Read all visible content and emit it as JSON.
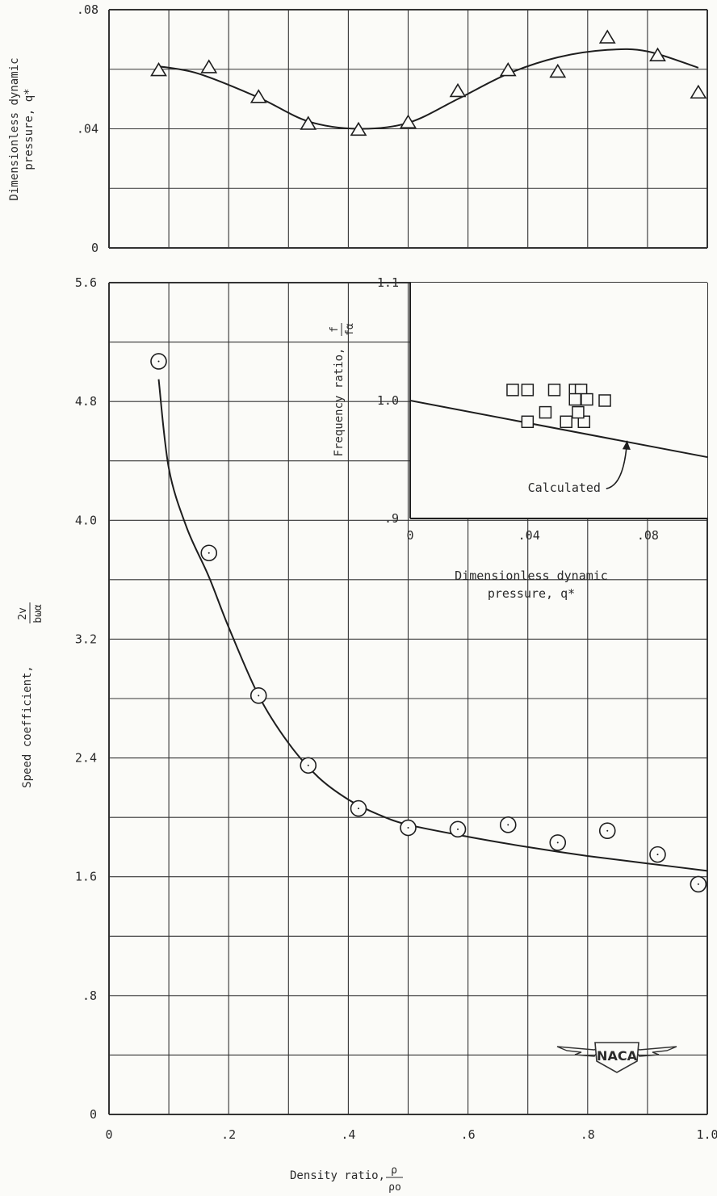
{
  "chart_data": [
    {
      "id": "top",
      "type": "scatter",
      "xlim": [
        0,
        1.0
      ],
      "ylim": [
        0,
        0.08
      ],
      "x_ticks": [],
      "y_ticks": [
        {
          "v": 0.08,
          "label": ".08"
        },
        {
          "v": 0.04,
          "label": ".04"
        },
        {
          "v": 0,
          "label": "0"
        }
      ],
      "ylabel_lines": [
        "Dimensionless dynamic",
        "pressure, q*"
      ],
      "grid": true,
      "marker": "triangle",
      "points": [
        [
          0.083,
          0.0595
        ],
        [
          0.167,
          0.0605
        ],
        [
          0.25,
          0.0505
        ],
        [
          0.333,
          0.0415
        ],
        [
          0.417,
          0.0395
        ],
        [
          0.5,
          0.042
        ],
        [
          0.583,
          0.0525
        ],
        [
          0.667,
          0.0595
        ],
        [
          0.75,
          0.059
        ],
        [
          0.833,
          0.0705
        ],
        [
          0.917,
          0.0645
        ],
        [
          0.985,
          0.052
        ]
      ],
      "curve": [
        [
          0.083,
          0.061
        ],
        [
          0.15,
          0.0585
        ],
        [
          0.25,
          0.0505
        ],
        [
          0.333,
          0.0425
        ],
        [
          0.417,
          0.04
        ],
        [
          0.5,
          0.042
        ],
        [
          0.583,
          0.05
        ],
        [
          0.667,
          0.0585
        ],
        [
          0.75,
          0.064
        ],
        [
          0.833,
          0.0665
        ],
        [
          0.9,
          0.066
        ],
        [
          0.985,
          0.0605
        ]
      ]
    },
    {
      "id": "main",
      "type": "scatter",
      "xlim": [
        0,
        1.0
      ],
      "ylim": [
        0,
        5.6
      ],
      "x_ticks": [
        {
          "v": 0,
          "label": "0"
        },
        {
          "v": 0.2,
          "label": ".2"
        },
        {
          "v": 0.4,
          "label": ".4"
        },
        {
          "v": 0.6,
          "label": ".6"
        },
        {
          "v": 0.8,
          "label": ".8"
        },
        {
          "v": 1.0,
          "label": "1.0"
        }
      ],
      "y_ticks": [
        {
          "v": 5.6,
          "label": "5.6"
        },
        {
          "v": 4.8,
          "label": "4.8"
        },
        {
          "v": 4.0,
          "label": "4.0"
        },
        {
          "v": 3.2,
          "label": "3.2"
        },
        {
          "v": 2.4,
          "label": "2.4"
        },
        {
          "v": 1.6,
          "label": "1.6"
        },
        {
          "v": 0.8,
          "label": ".8"
        },
        {
          "v": 0,
          "label": "0"
        }
      ],
      "xlabel": "Density ratio, ",
      "xlabel_frac": {
        "num": "ρ",
        "den": "ρo"
      },
      "ylabel": "Speed coefficient, ",
      "ylabel_frac": {
        "num": "2v",
        "den": "bωα"
      },
      "grid": true,
      "marker": "circle",
      "points": [
        [
          0.083,
          5.07
        ],
        [
          0.167,
          3.78
        ],
        [
          0.25,
          2.82
        ],
        [
          0.333,
          2.35
        ],
        [
          0.417,
          2.06
        ],
        [
          0.5,
          1.93
        ],
        [
          0.583,
          1.92
        ],
        [
          0.667,
          1.95
        ],
        [
          0.75,
          1.83
        ],
        [
          0.833,
          1.91
        ],
        [
          0.917,
          1.75
        ],
        [
          0.985,
          1.55
        ]
      ],
      "curve": [
        [
          0.083,
          4.95
        ],
        [
          0.1,
          4.35
        ],
        [
          0.13,
          3.95
        ],
        [
          0.167,
          3.62
        ],
        [
          0.2,
          3.28
        ],
        [
          0.25,
          2.82
        ],
        [
          0.3,
          2.5
        ],
        [
          0.35,
          2.27
        ],
        [
          0.4,
          2.12
        ],
        [
          0.45,
          2.02
        ],
        [
          0.5,
          1.95
        ],
        [
          0.6,
          1.87
        ],
        [
          0.7,
          1.8
        ],
        [
          0.8,
          1.74
        ],
        [
          0.9,
          1.69
        ],
        [
          1.0,
          1.64
        ]
      ]
    },
    {
      "id": "inset",
      "type": "scatter",
      "xlim": [
        0,
        0.1
      ],
      "ylim": [
        0.9,
        1.1
      ],
      "x_ticks": [
        {
          "v": 0,
          "label": "0"
        },
        {
          "v": 0.04,
          "label": ".04"
        },
        {
          "v": 0.08,
          "label": ".08"
        }
      ],
      "y_ticks": [
        {
          "v": 1.1,
          "label": "1.1"
        },
        {
          "v": 1.0,
          "label": "1.0"
        },
        {
          "v": 0.9,
          "label": ".9"
        }
      ],
      "xlabel_lines": [
        "Dimensionless dynamic",
        "pressure, q*"
      ],
      "ylabel": "Frequency ratio, ",
      "ylabel_frac": {
        "num": "f",
        "den": "fα"
      },
      "grid": false,
      "marker": "square",
      "points": [
        [
          0.0345,
          1.009
        ],
        [
          0.0395,
          1.009
        ],
        [
          0.0485,
          1.009
        ],
        [
          0.0555,
          1.009
        ],
        [
          0.0575,
          1.009
        ],
        [
          0.0555,
          1.001
        ],
        [
          0.0595,
          1.001
        ],
        [
          0.0655,
          1.0
        ],
        [
          0.0455,
          0.99
        ],
        [
          0.0395,
          0.982
        ],
        [
          0.0525,
          0.982
        ],
        [
          0.0585,
          0.982
        ],
        [
          0.0565,
          0.99
        ]
      ],
      "line": [
        [
          0,
          1.0
        ],
        [
          0.1,
          0.952
        ]
      ],
      "annotation": {
        "text": "Calculated",
        "x": 0.06,
        "y": 0.926,
        "arrow_to": [
          0.073,
          0.966
        ]
      }
    }
  ],
  "logo": {
    "text": "NACA"
  }
}
